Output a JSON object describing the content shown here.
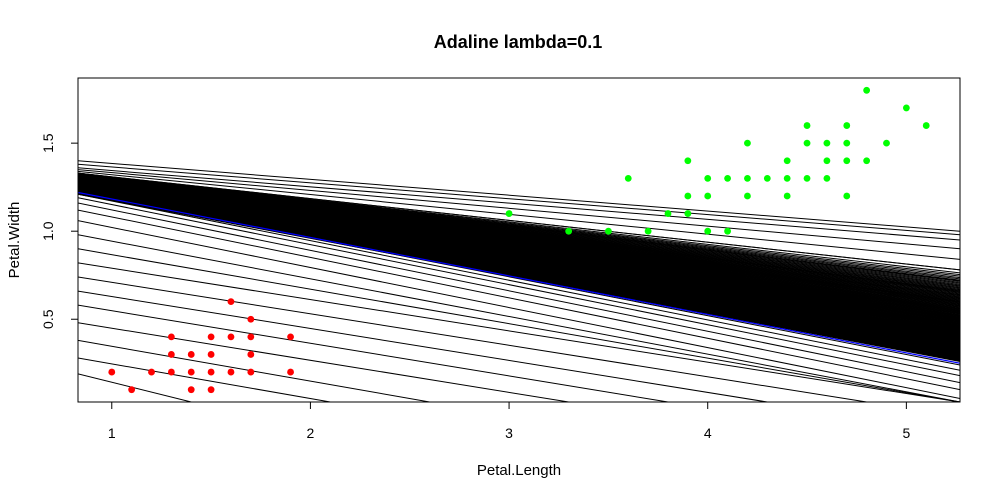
{
  "chart_data": {
    "type": "scatter",
    "title": "Adaline lambda=0.1",
    "xlabel": "Petal.Length",
    "ylabel": "Petal.Width",
    "xlim": [
      0.83,
      5.27
    ],
    "ylim": [
      0.03,
      1.87
    ],
    "x_ticks": [
      1,
      2,
      3,
      4,
      5
    ],
    "y_ticks": [
      0.5,
      1.0,
      1.5
    ],
    "x_tick_labels": [
      "1",
      "2",
      "3",
      "4",
      "5"
    ],
    "y_tick_labels": [
      "0.5",
      "1.0",
      "1.5"
    ],
    "grid": false,
    "legend": "none",
    "colors": {
      "setosa": "#ff0000",
      "versicolor": "#00ff00",
      "iteration_lines": "#000000",
      "final_boundary": "#0000ff"
    },
    "series": [
      {
        "class": "setosa",
        "points": [
          [
            1.0,
            0.2
          ],
          [
            1.1,
            0.1
          ],
          [
            1.2,
            0.2
          ],
          [
            1.3,
            0.2
          ],
          [
            1.3,
            0.3
          ],
          [
            1.3,
            0.4
          ],
          [
            1.4,
            0.1
          ],
          [
            1.4,
            0.2
          ],
          [
            1.4,
            0.3
          ],
          [
            1.5,
            0.1
          ],
          [
            1.5,
            0.2
          ],
          [
            1.5,
            0.3
          ],
          [
            1.5,
            0.4
          ],
          [
            1.6,
            0.2
          ],
          [
            1.6,
            0.4
          ],
          [
            1.6,
            0.6
          ],
          [
            1.7,
            0.2
          ],
          [
            1.7,
            0.3
          ],
          [
            1.7,
            0.4
          ],
          [
            1.7,
            0.5
          ],
          [
            1.9,
            0.2
          ],
          [
            1.9,
            0.4
          ]
        ]
      },
      {
        "class": "versicolor",
        "points": [
          [
            3.0,
            1.1
          ],
          [
            3.3,
            1.0
          ],
          [
            3.5,
            1.0
          ],
          [
            3.6,
            1.3
          ],
          [
            3.7,
            1.0
          ],
          [
            3.8,
            1.1
          ],
          [
            3.9,
            1.1
          ],
          [
            3.9,
            1.2
          ],
          [
            3.9,
            1.4
          ],
          [
            4.0,
            1.0
          ],
          [
            4.0,
            1.2
          ],
          [
            4.0,
            1.3
          ],
          [
            4.1,
            1.0
          ],
          [
            4.1,
            1.3
          ],
          [
            4.2,
            1.2
          ],
          [
            4.2,
            1.3
          ],
          [
            4.2,
            1.5
          ],
          [
            4.3,
            1.3
          ],
          [
            4.4,
            1.2
          ],
          [
            4.4,
            1.3
          ],
          [
            4.4,
            1.4
          ],
          [
            4.5,
            1.3
          ],
          [
            4.5,
            1.5
          ],
          [
            4.5,
            1.6
          ],
          [
            4.6,
            1.3
          ],
          [
            4.6,
            1.4
          ],
          [
            4.6,
            1.5
          ],
          [
            4.7,
            1.2
          ],
          [
            4.7,
            1.4
          ],
          [
            4.7,
            1.5
          ],
          [
            4.7,
            1.6
          ],
          [
            4.8,
            1.4
          ],
          [
            4.8,
            1.8
          ],
          [
            4.9,
            1.5
          ],
          [
            5.0,
            1.7
          ],
          [
            5.1,
            1.6
          ]
        ]
      }
    ],
    "decision_lines": [
      [
        0.83,
        1.4,
        5.27,
        1.0
      ],
      [
        0.83,
        1.38,
        5.27,
        0.98
      ],
      [
        0.83,
        1.36,
        5.27,
        0.95
      ],
      [
        0.83,
        1.35,
        5.27,
        0.9
      ],
      [
        0.83,
        1.34,
        5.27,
        0.84
      ],
      [
        0.83,
        1.33,
        5.27,
        0.78
      ],
      [
        0.83,
        1.33,
        5.27,
        0.72
      ],
      [
        0.83,
        1.32,
        5.27,
        0.66
      ],
      [
        0.83,
        1.31,
        5.27,
        0.6
      ],
      [
        0.83,
        1.3,
        5.27,
        0.55
      ],
      [
        0.83,
        1.29,
        5.27,
        0.5
      ],
      [
        0.83,
        1.28,
        5.27,
        0.46
      ],
      [
        0.83,
        1.27,
        5.27,
        0.42
      ],
      [
        0.83,
        1.26,
        5.27,
        0.38
      ],
      [
        0.83,
        1.25,
        5.27,
        0.34
      ],
      [
        0.83,
        1.24,
        5.27,
        0.3
      ],
      [
        0.83,
        1.23,
        5.27,
        0.27
      ],
      [
        0.83,
        1.22,
        5.27,
        0.24
      ],
      [
        0.83,
        1.21,
        5.27,
        0.21
      ],
      [
        0.83,
        1.19,
        5.27,
        0.18
      ],
      [
        0.83,
        1.16,
        5.27,
        0.14
      ],
      [
        0.83,
        1.12,
        5.27,
        0.1
      ],
      [
        0.83,
        1.06,
        5.27,
        0.05
      ],
      [
        0.83,
        0.98,
        5.27,
        0.03
      ],
      [
        0.83,
        0.9,
        5.27,
        0.03
      ],
      [
        0.83,
        0.82,
        5.27,
        0.03
      ],
      [
        0.83,
        0.74,
        4.8,
        0.03
      ],
      [
        0.83,
        0.66,
        4.3,
        0.03
      ],
      [
        0.83,
        0.58,
        3.8,
        0.03
      ],
      [
        0.83,
        0.48,
        3.3,
        0.03
      ],
      [
        0.83,
        0.38,
        2.6,
        0.03
      ],
      [
        0.83,
        0.28,
        2.1,
        0.03
      ],
      [
        0.83,
        0.19,
        1.4,
        0.03
      ]
    ],
    "final_boundary": [
      0.83,
      1.22,
      5.27,
      0.25
    ]
  }
}
